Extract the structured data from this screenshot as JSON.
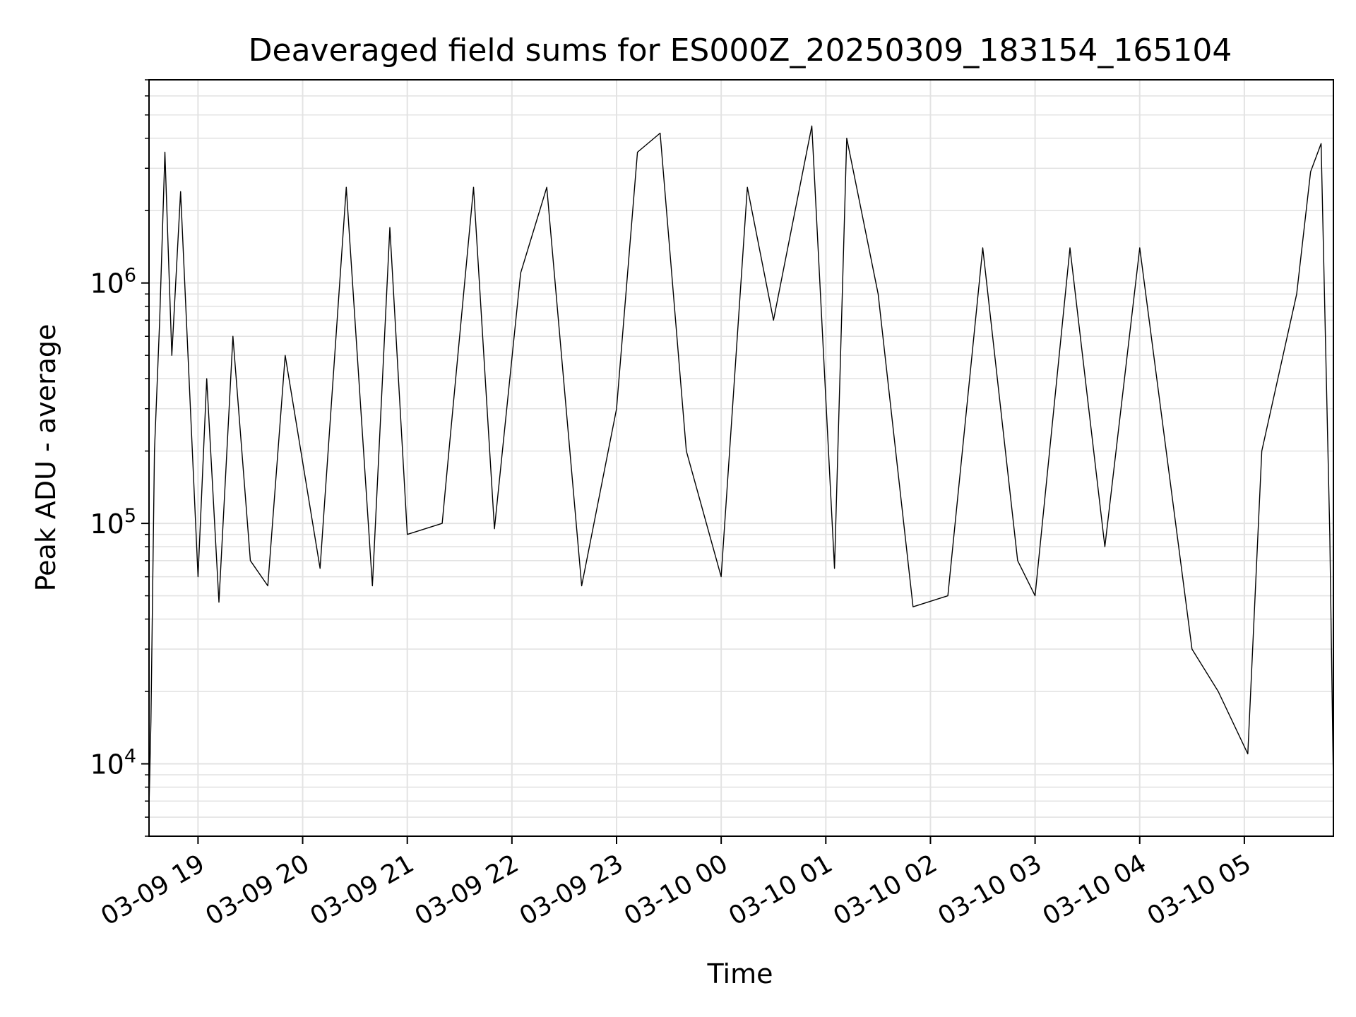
{
  "chart_data": {
    "type": "line",
    "title": "Deaveraged field sums for ES000Z_20250309_183154_165104",
    "xlabel": "Time",
    "ylabel": "Peak ADU - average",
    "yscale": "log",
    "ylim": [
      5000,
      7000000
    ],
    "xlim": [
      "2025-03-09 18:31:54",
      "2025-03-10 05:51:04"
    ],
    "grid": true,
    "line_color": "#000000",
    "x_ticks": [
      {
        "label": "03-09 19",
        "time": "2025-03-09 19:00"
      },
      {
        "label": "03-09 20",
        "time": "2025-03-09 20:00"
      },
      {
        "label": "03-09 21",
        "time": "2025-03-09 21:00"
      },
      {
        "label": "03-09 22",
        "time": "2025-03-09 22:00"
      },
      {
        "label": "03-09 23",
        "time": "2025-03-09 23:00"
      },
      {
        "label": "03-10 00",
        "time": "2025-03-10 00:00"
      },
      {
        "label": "03-10 01",
        "time": "2025-03-10 01:00"
      },
      {
        "label": "03-10 02",
        "time": "2025-03-10 02:00"
      },
      {
        "label": "03-10 03",
        "time": "2025-03-10 03:00"
      },
      {
        "label": "03-10 04",
        "time": "2025-03-10 04:00"
      },
      {
        "label": "03-10 05",
        "time": "2025-03-10 05:00"
      }
    ],
    "y_ticks": [
      {
        "base": "10",
        "exp": "4",
        "value": 10000
      },
      {
        "base": "10",
        "exp": "5",
        "value": 100000
      },
      {
        "base": "10",
        "exp": "6",
        "value": 1000000
      }
    ],
    "series": [
      {
        "values": [
          [
            "2025-03-09 18:32",
            7000
          ],
          [
            "2025-03-09 18:33",
            15000
          ],
          [
            "2025-03-09 18:35",
            200000
          ],
          [
            "2025-03-09 18:38",
            700000
          ],
          [
            "2025-03-09 18:41",
            3500000
          ],
          [
            "2025-03-09 18:45",
            500000
          ],
          [
            "2025-03-09 18:50",
            2400000
          ],
          [
            "2025-03-09 19:00",
            60000
          ],
          [
            "2025-03-09 19:05",
            400000
          ],
          [
            "2025-03-09 19:12",
            47000
          ],
          [
            "2025-03-09 19:20",
            600000
          ],
          [
            "2025-03-09 19:30",
            70000
          ],
          [
            "2025-03-09 19:40",
            55000
          ],
          [
            "2025-03-09 19:50",
            500000
          ],
          [
            "2025-03-09 20:10",
            65000
          ],
          [
            "2025-03-09 20:25",
            2500000
          ],
          [
            "2025-03-09 20:40",
            55000
          ],
          [
            "2025-03-09 20:50",
            1700000
          ],
          [
            "2025-03-09 21:00",
            90000
          ],
          [
            "2025-03-09 21:20",
            100000
          ],
          [
            "2025-03-09 21:38",
            2500000
          ],
          [
            "2025-03-09 21:50",
            95000
          ],
          [
            "2025-03-09 22:05",
            1100000
          ],
          [
            "2025-03-09 22:20",
            2500000
          ],
          [
            "2025-03-09 22:40",
            55000
          ],
          [
            "2025-03-09 23:00",
            300000
          ],
          [
            "2025-03-09 23:12",
            3500000
          ],
          [
            "2025-03-09 23:25",
            4200000
          ],
          [
            "2025-03-09 23:40",
            200000
          ],
          [
            "2025-03-10 00:00",
            60000
          ],
          [
            "2025-03-10 00:15",
            2500000
          ],
          [
            "2025-03-10 00:30",
            700000
          ],
          [
            "2025-03-10 00:52",
            4500000
          ],
          [
            "2025-03-10 01:05",
            65000
          ],
          [
            "2025-03-10 01:12",
            4000000
          ],
          [
            "2025-03-10 01:30",
            900000
          ],
          [
            "2025-03-10 01:50",
            45000
          ],
          [
            "2025-03-10 02:10",
            50000
          ],
          [
            "2025-03-10 02:30",
            1400000
          ],
          [
            "2025-03-10 02:50",
            70000
          ],
          [
            "2025-03-10 03:00",
            50000
          ],
          [
            "2025-03-10 03:20",
            1400000
          ],
          [
            "2025-03-10 03:40",
            80000
          ],
          [
            "2025-03-10 04:00",
            1400000
          ],
          [
            "2025-03-10 04:30",
            30000
          ],
          [
            "2025-03-10 04:45",
            20000
          ],
          [
            "2025-03-10 05:02",
            11000
          ],
          [
            "2025-03-10 05:10",
            200000
          ],
          [
            "2025-03-10 05:30",
            900000
          ],
          [
            "2025-03-10 05:38",
            2900000
          ],
          [
            "2025-03-10 05:44",
            3800000
          ],
          [
            "2025-03-10 05:49",
            90000
          ],
          [
            "2025-03-10 05:51",
            9000
          ]
        ]
      }
    ]
  }
}
